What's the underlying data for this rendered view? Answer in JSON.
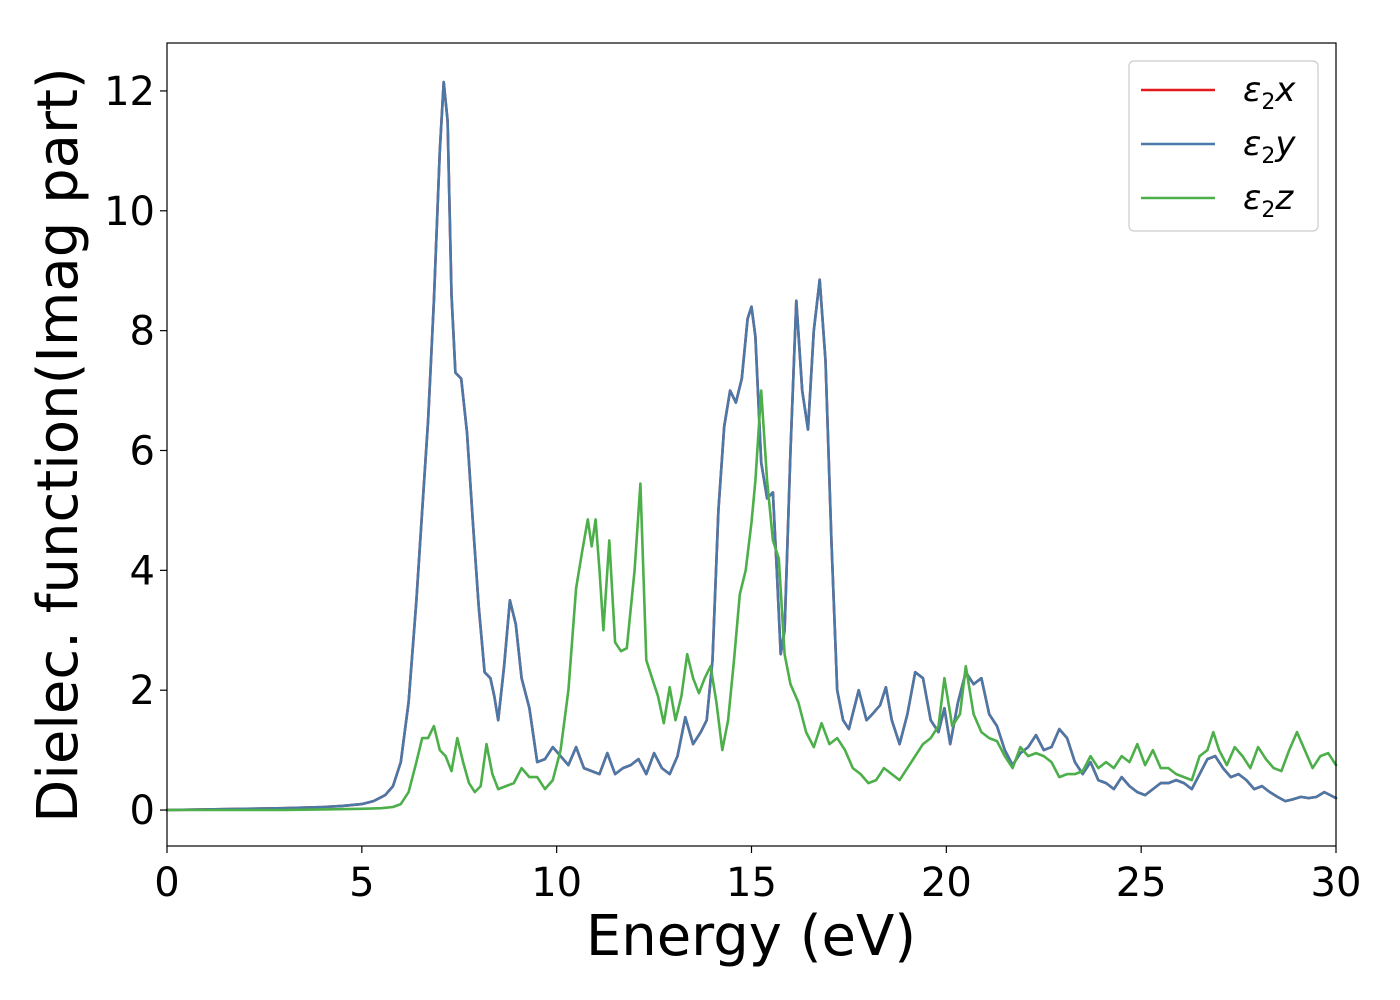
{
  "chart_data": {
    "type": "line",
    "title": "",
    "xlabel": "Energy (eV)",
    "ylabel": "Dielec. function(Imag part)",
    "xlim": [
      0,
      30
    ],
    "ylim": [
      -0.6,
      12.8
    ],
    "xticks": [
      0,
      5,
      10,
      15,
      20,
      25,
      30
    ],
    "yticks": [
      0,
      2,
      4,
      6,
      8,
      10,
      12
    ],
    "grid": false,
    "legend_position": "top-right",
    "series": [
      {
        "name": "ε2x",
        "legend_symbol": "ε",
        "legend_sub": "2",
        "legend_var": "x",
        "color": "#e41a1c",
        "linked_to": "ε2y",
        "x": [],
        "y": []
      },
      {
        "name": "ε2y",
        "legend_symbol": "ε",
        "legend_sub": "2",
        "legend_var": "y",
        "color": "#4a79a8",
        "x": [
          0,
          1,
          2,
          3,
          4,
          4.5,
          5,
          5.3,
          5.6,
          5.8,
          6.0,
          6.2,
          6.4,
          6.55,
          6.7,
          6.85,
          7.0,
          7.1,
          7.2,
          7.3,
          7.4,
          7.55,
          7.7,
          7.85,
          8.0,
          8.15,
          8.3,
          8.4,
          8.5,
          8.65,
          8.8,
          8.95,
          9.1,
          9.3,
          9.5,
          9.7,
          9.9,
          10.1,
          10.3,
          10.5,
          10.7,
          10.9,
          11.1,
          11.3,
          11.5,
          11.7,
          11.9,
          12.1,
          12.3,
          12.5,
          12.7,
          12.9,
          13.1,
          13.3,
          13.5,
          13.7,
          13.85,
          14.0,
          14.15,
          14.3,
          14.45,
          14.6,
          14.75,
          14.9,
          15.0,
          15.1,
          15.25,
          15.4,
          15.55,
          15.65,
          15.75,
          15.85,
          16.0,
          16.15,
          16.3,
          16.45,
          16.6,
          16.75,
          16.9,
          17.05,
          17.2,
          17.35,
          17.5,
          17.75,
          17.95,
          18.1,
          18.3,
          18.45,
          18.6,
          18.8,
          19.0,
          19.2,
          19.4,
          19.6,
          19.8,
          19.95,
          20.1,
          20.3,
          20.5,
          20.7,
          20.9,
          21.1,
          21.3,
          21.5,
          21.7,
          21.9,
          22.1,
          22.3,
          22.5,
          22.7,
          22.9,
          23.1,
          23.3,
          23.5,
          23.7,
          23.9,
          24.1,
          24.3,
          24.5,
          24.7,
          24.9,
          25.1,
          25.3,
          25.5,
          25.7,
          25.9,
          26.1,
          26.3,
          26.5,
          26.7,
          26.9,
          27.1,
          27.3,
          27.5,
          27.7,
          27.9,
          28.1,
          28.3,
          28.5,
          28.7,
          28.9,
          29.1,
          29.3,
          29.5,
          29.7,
          29.85,
          30
        ],
        "y": [
          0.0,
          0.01,
          0.02,
          0.03,
          0.05,
          0.07,
          0.1,
          0.15,
          0.25,
          0.4,
          0.8,
          1.8,
          3.5,
          5.0,
          6.5,
          8.5,
          11.0,
          12.15,
          11.5,
          8.6,
          7.3,
          7.2,
          6.3,
          4.8,
          3.4,
          2.3,
          2.2,
          1.9,
          1.5,
          2.4,
          3.5,
          3.1,
          2.2,
          1.7,
          0.8,
          0.85,
          1.05,
          0.9,
          0.75,
          1.05,
          0.7,
          0.65,
          0.6,
          0.95,
          0.6,
          0.7,
          0.75,
          0.85,
          0.6,
          0.95,
          0.7,
          0.6,
          0.9,
          1.55,
          1.1,
          1.3,
          1.5,
          2.5,
          5.0,
          6.4,
          7.0,
          6.8,
          7.2,
          8.2,
          8.4,
          7.9,
          5.8,
          5.2,
          5.3,
          4.0,
          2.6,
          3.0,
          6.0,
          8.5,
          7.0,
          6.35,
          8.0,
          8.85,
          7.5,
          4.5,
          2.0,
          1.5,
          1.35,
          2.0,
          1.5,
          1.6,
          1.75,
          2.05,
          1.5,
          1.1,
          1.6,
          2.3,
          2.2,
          1.5,
          1.3,
          1.7,
          1.1,
          1.8,
          2.3,
          2.1,
          2.2,
          1.6,
          1.4,
          1.0,
          0.75,
          0.95,
          1.05,
          1.25,
          1.0,
          1.05,
          1.35,
          1.2,
          0.8,
          0.6,
          0.8,
          0.5,
          0.45,
          0.35,
          0.55,
          0.4,
          0.3,
          0.25,
          0.35,
          0.45,
          0.45,
          0.5,
          0.45,
          0.35,
          0.6,
          0.85,
          0.9,
          0.7,
          0.55,
          0.6,
          0.5,
          0.35,
          0.4,
          0.3,
          0.22,
          0.15,
          0.18,
          0.22,
          0.2,
          0.22,
          0.3,
          0.25,
          0.2
        ]
      },
      {
        "name": "ε2z",
        "legend_symbol": "ε",
        "legend_sub": "2",
        "legend_var": "z",
        "color": "#4daf4a",
        "x": [
          0,
          1,
          2,
          3,
          4,
          5,
          5.5,
          5.8,
          6.0,
          6.2,
          6.4,
          6.55,
          6.7,
          6.85,
          7.0,
          7.15,
          7.3,
          7.45,
          7.6,
          7.75,
          7.9,
          8.05,
          8.2,
          8.35,
          8.5,
          8.7,
          8.9,
          9.1,
          9.3,
          9.5,
          9.7,
          9.9,
          10.1,
          10.3,
          10.5,
          10.65,
          10.8,
          10.9,
          11.0,
          11.1,
          11.2,
          11.35,
          11.5,
          11.65,
          11.8,
          12.0,
          12.15,
          12.3,
          12.45,
          12.6,
          12.75,
          12.9,
          13.05,
          13.2,
          13.35,
          13.5,
          13.65,
          13.8,
          13.95,
          14.1,
          14.25,
          14.4,
          14.55,
          14.7,
          14.85,
          15.0,
          15.1,
          15.25,
          15.4,
          15.55,
          15.7,
          15.85,
          16.0,
          16.2,
          16.4,
          16.6,
          16.8,
          17.0,
          17.2,
          17.4,
          17.6,
          17.8,
          18.0,
          18.2,
          18.4,
          18.6,
          18.8,
          19.0,
          19.2,
          19.4,
          19.6,
          19.8,
          19.95,
          20.15,
          20.35,
          20.5,
          20.7,
          20.9,
          21.1,
          21.3,
          21.5,
          21.7,
          21.9,
          22.1,
          22.3,
          22.5,
          22.7,
          22.9,
          23.1,
          23.3,
          23.5,
          23.7,
          23.9,
          24.1,
          24.3,
          24.5,
          24.7,
          24.9,
          25.1,
          25.3,
          25.5,
          25.7,
          25.9,
          26.1,
          26.3,
          26.5,
          26.7,
          26.85,
          27.0,
          27.2,
          27.4,
          27.6,
          27.8,
          28.0,
          28.2,
          28.4,
          28.6,
          28.8,
          29.0,
          29.2,
          29.4,
          29.6,
          29.8,
          30
        ],
        "y": [
          0.0,
          0.0,
          0.0,
          0.0,
          0.01,
          0.02,
          0.03,
          0.05,
          0.1,
          0.3,
          0.8,
          1.2,
          1.2,
          1.4,
          1.0,
          0.9,
          0.65,
          1.2,
          0.8,
          0.45,
          0.3,
          0.4,
          1.1,
          0.6,
          0.35,
          0.4,
          0.45,
          0.7,
          0.55,
          0.55,
          0.35,
          0.5,
          1.0,
          2.0,
          3.7,
          4.3,
          4.85,
          4.4,
          4.85,
          4.0,
          3.0,
          4.5,
          2.8,
          2.65,
          2.7,
          4.0,
          5.45,
          2.5,
          2.2,
          1.9,
          1.45,
          2.05,
          1.5,
          1.9,
          2.6,
          2.2,
          1.95,
          2.2,
          2.4,
          1.8,
          1.0,
          1.5,
          2.5,
          3.6,
          4.0,
          4.8,
          5.5,
          7.0,
          5.5,
          4.5,
          4.2,
          2.6,
          2.1,
          1.8,
          1.3,
          1.05,
          1.45,
          1.1,
          1.2,
          1.0,
          0.7,
          0.6,
          0.45,
          0.5,
          0.7,
          0.6,
          0.5,
          0.7,
          0.9,
          1.1,
          1.2,
          1.4,
          2.2,
          1.4,
          1.6,
          2.4,
          1.6,
          1.3,
          1.2,
          1.15,
          0.9,
          0.7,
          1.05,
          0.9,
          0.95,
          0.9,
          0.8,
          0.55,
          0.6,
          0.6,
          0.65,
          0.9,
          0.7,
          0.8,
          0.7,
          0.9,
          0.8,
          1.1,
          0.75,
          1.0,
          0.7,
          0.7,
          0.6,
          0.55,
          0.5,
          0.9,
          1.0,
          1.3,
          1.0,
          0.75,
          1.05,
          0.9,
          0.7,
          1.05,
          0.85,
          0.7,
          0.65,
          1.0,
          1.3,
          1.0,
          0.7,
          0.9,
          0.95,
          0.75
        ]
      }
    ]
  }
}
